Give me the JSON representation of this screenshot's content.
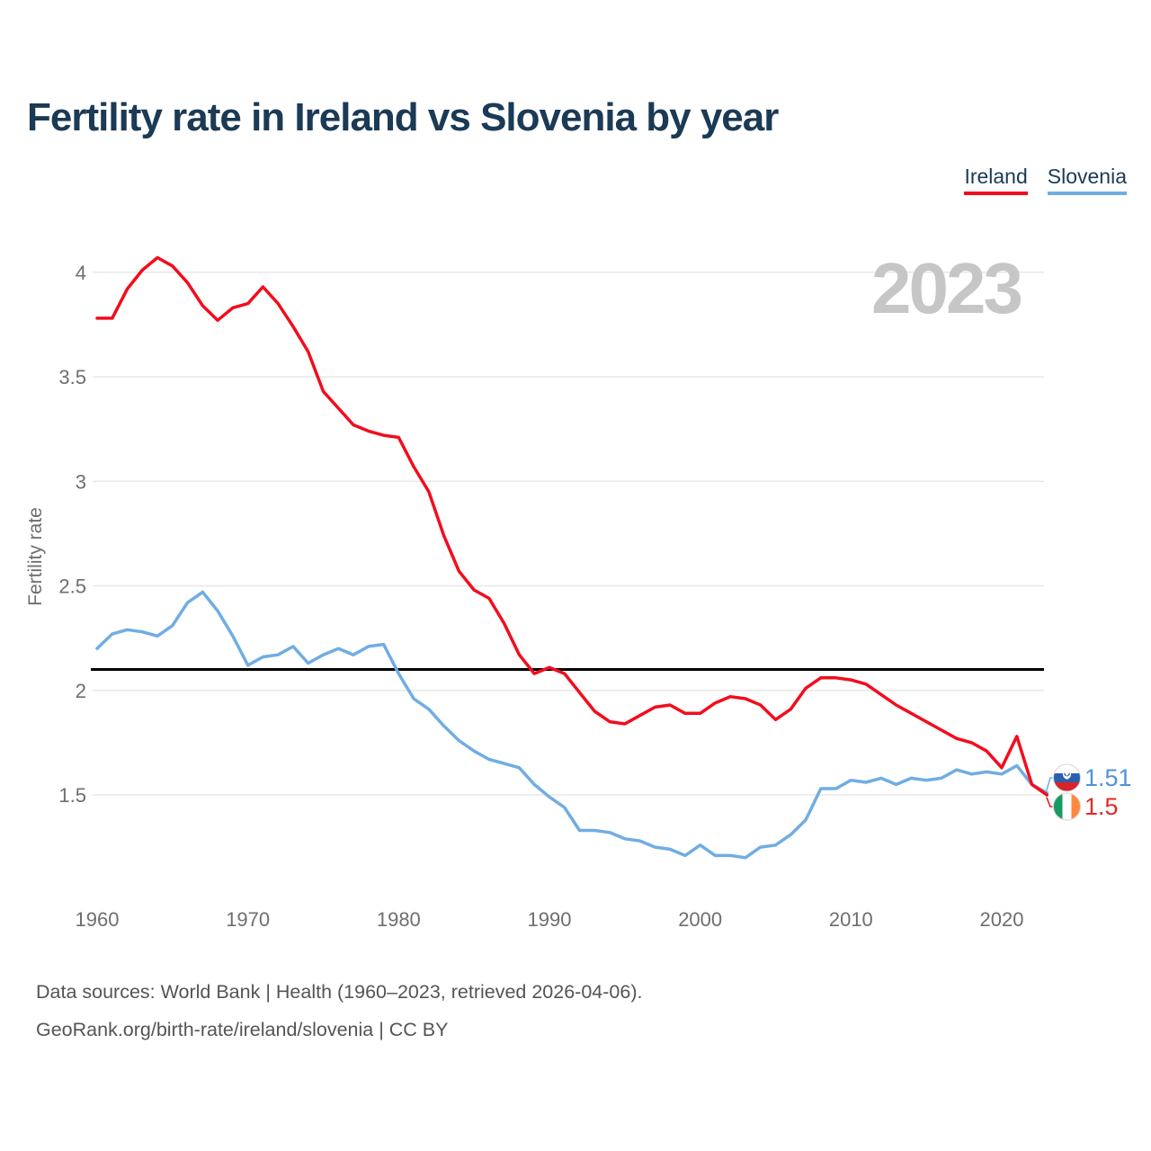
{
  "title": "Fertility rate in Ireland vs Slovenia by year",
  "watermark_year": "2023",
  "legend": {
    "items": [
      {
        "label": "Ireland",
        "color": "#f20d1d"
      },
      {
        "label": "Slovenia",
        "color": "#70ade2"
      }
    ]
  },
  "colors": {
    "title_text": "#1b3a55",
    "axis_text": "#6e6e6e",
    "gridline": "#e8e8e8",
    "watermark": "#c6c6c6",
    "replacement_line": "#000000",
    "ireland_line": "#f20d1d",
    "slovenia_line": "#70ade2",
    "ireland_value_text": "#e42a25",
    "slovenia_value_text": "#4f94d8",
    "footer_text": "#545454",
    "ireland_flag": {
      "green": "#169b62",
      "white": "#ffffff",
      "orange": "#ff883e"
    },
    "slovenia_flag": {
      "white": "#ffffff",
      "blue": "#2b61ac",
      "red": "#d8232a"
    }
  },
  "chart_data": {
    "type": "line",
    "title": "Fertility rate in Ireland vs Slovenia by year",
    "xlabel": "",
    "ylabel": "Fertility rate",
    "grid": "horizontal-only",
    "legend_position": "top-right",
    "ylim": [
      1.0,
      4.3
    ],
    "xlim": [
      1960,
      2023
    ],
    "reference_line": {
      "value": 2.1,
      "color": "#000000",
      "note": "horizontal black line at 2.1"
    },
    "watermark": "2023",
    "yticks": [
      {
        "v": 1.5,
        "label": "1.5"
      },
      {
        "v": 2,
        "label": "2"
      },
      {
        "v": 2.5,
        "label": "2.5"
      },
      {
        "v": 3,
        "label": "3"
      },
      {
        "v": 3.5,
        "label": "3.5"
      },
      {
        "v": 4,
        "label": "4"
      }
    ],
    "xticks": [
      {
        "v": 1960,
        "label": "1960"
      },
      {
        "v": 1970,
        "label": "1970"
      },
      {
        "v": 1980,
        "label": "1980"
      },
      {
        "v": 1990,
        "label": "1990"
      },
      {
        "v": 2000,
        "label": "2000"
      },
      {
        "v": 2010,
        "label": "2010"
      },
      {
        "v": 2020,
        "label": "2020"
      }
    ],
    "years": [
      1960,
      1961,
      1962,
      1963,
      1964,
      1965,
      1966,
      1967,
      1968,
      1969,
      1970,
      1971,
      1972,
      1973,
      1974,
      1975,
      1976,
      1977,
      1978,
      1979,
      1980,
      1981,
      1982,
      1983,
      1984,
      1985,
      1986,
      1987,
      1988,
      1989,
      1990,
      1991,
      1992,
      1993,
      1994,
      1995,
      1996,
      1997,
      1998,
      1999,
      2000,
      2001,
      2002,
      2003,
      2004,
      2005,
      2006,
      2007,
      2008,
      2009,
      2010,
      2011,
      2012,
      2013,
      2014,
      2015,
      2016,
      2017,
      2018,
      2019,
      2020,
      2021,
      2022,
      2023
    ],
    "series": [
      {
        "name": "Slovenia",
        "color": "#70ade2",
        "values": [
          2.2,
          2.27,
          2.29,
          2.28,
          2.26,
          2.31,
          2.42,
          2.47,
          2.38,
          2.26,
          2.12,
          2.16,
          2.17,
          2.21,
          2.13,
          2.17,
          2.2,
          2.17,
          2.21,
          2.22,
          2.08,
          1.96,
          1.91,
          1.83,
          1.76,
          1.71,
          1.67,
          1.65,
          1.63,
          1.55,
          1.49,
          1.44,
          1.33,
          1.33,
          1.32,
          1.29,
          1.28,
          1.25,
          1.24,
          1.21,
          1.26,
          1.21,
          1.21,
          1.2,
          1.25,
          1.26,
          1.31,
          1.38,
          1.53,
          1.53,
          1.57,
          1.56,
          1.58,
          1.55,
          1.58,
          1.57,
          1.58,
          1.62,
          1.6,
          1.61,
          1.6,
          1.64,
          1.55,
          1.51
        ]
      },
      {
        "name": "Ireland",
        "color": "#f20d1d",
        "values": [
          3.78,
          3.78,
          3.92,
          4.01,
          4.07,
          4.03,
          3.95,
          3.84,
          3.77,
          3.83,
          3.85,
          3.93,
          3.85,
          3.74,
          3.62,
          3.43,
          3.35,
          3.27,
          3.24,
          3.22,
          3.21,
          3.07,
          2.95,
          2.74,
          2.57,
          2.48,
          2.44,
          2.32,
          2.17,
          2.08,
          2.11,
          2.08,
          1.99,
          1.9,
          1.85,
          1.84,
          1.88,
          1.92,
          1.93,
          1.89,
          1.89,
          1.94,
          1.97,
          1.96,
          1.93,
          1.86,
          1.91,
          2.01,
          2.06,
          2.06,
          2.05,
          2.03,
          1.98,
          1.93,
          1.89,
          1.85,
          1.81,
          1.77,
          1.75,
          1.71,
          1.63,
          1.78,
          1.55,
          1.5
        ]
      }
    ],
    "end_labels": [
      {
        "series": "Slovenia",
        "value": "1.51",
        "flag": "slovenia-flag-icon",
        "text_color": "#4f94d8"
      },
      {
        "series": "Ireland",
        "value": "1.5",
        "flag": "ireland-flag-icon",
        "text_color": "#e42a25"
      }
    ]
  },
  "footer": {
    "line1": "Data sources: World Bank | Health (1960–2023, retrieved 2026-04-06).",
    "line2": "GeoRank.org/birth-rate/ireland/slovenia | CC BY"
  }
}
